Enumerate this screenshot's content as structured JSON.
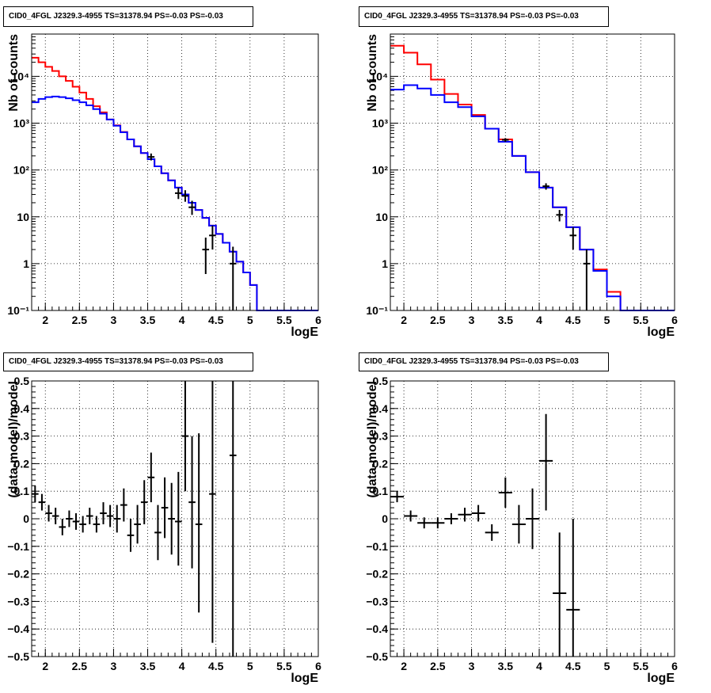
{
  "chart_data": [
    {
      "type": "line",
      "title": "CID0_4FGL J2329.3-4955 TS=31378.94 PS=-0.03 PS=-0.03",
      "xlabel": "logE",
      "ylabel": "Nb of counts",
      "ylog": true,
      "xlim": [
        1.8,
        6
      ],
      "ylim": [
        0.1,
        80000
      ],
      "xticks": [
        2,
        2.5,
        3,
        3.5,
        4,
        4.5,
        5,
        5.5,
        6
      ],
      "xtick_labels": [
        "2",
        "2.5",
        "3",
        "3.5",
        "4",
        "4.5",
        "5",
        "5.5",
        "6"
      ],
      "yticks": [
        0.1,
        1,
        10,
        100,
        1000,
        10000
      ],
      "ytick_labels": [
        "10⁻¹",
        "1",
        "10",
        "10²",
        "10³",
        "10⁴"
      ],
      "grid": true,
      "bin_edges": [
        1.8,
        1.9,
        2.0,
        2.1,
        2.2,
        2.3,
        2.4,
        2.5,
        2.6,
        2.7,
        2.8,
        2.9,
        3.0,
        3.1,
        3.2,
        3.3,
        3.4,
        3.5,
        3.6,
        3.7,
        3.8,
        3.9,
        4.0,
        4.1,
        4.2,
        4.3,
        4.4,
        4.5,
        4.6,
        4.7,
        4.8,
        4.9,
        5.0,
        5.1,
        5.2,
        5.3,
        5.4,
        5.5,
        5.6,
        5.7,
        5.8,
        5.9,
        6.0
      ],
      "series": [
        {
          "color": "#ff0000",
          "step_values": [
            25000,
            20000,
            16000,
            13000,
            10000,
            8000,
            6000,
            4500,
            3300,
            2300,
            1700,
            1200,
            900,
            650,
            450,
            320,
            230,
            170,
            120,
            85,
            60,
            42,
            30,
            20,
            14,
            9.5,
            6.5,
            4.3,
            2.8,
            1.8,
            1.1,
            0.65,
            0.35,
            0.1,
            0.1,
            0.1,
            0.1,
            0.1,
            0.1,
            0.1,
            0.1,
            0.1
          ]
        },
        {
          "color": "#0000ff",
          "step_values": [
            2800,
            3300,
            3600,
            3700,
            3600,
            3400,
            3100,
            2800,
            2400,
            2000,
            1600,
            1200,
            880,
            640,
            450,
            320,
            230,
            170,
            120,
            85,
            60,
            42,
            30,
            20,
            14,
            9.5,
            6.5,
            4.3,
            2.8,
            1.8,
            1.1,
            0.65,
            0.35,
            0.1,
            0.1,
            0.1,
            0.1,
            0.1,
            0.1,
            0.1,
            0.1,
            0.1
          ]
        },
        {
          "color": "#000000",
          "points": [
            {
              "x": 3.55,
              "y": 190,
              "lo": 160,
              "hi": 225
            },
            {
              "x": 3.95,
              "y": 32,
              "lo": 24,
              "hi": 42
            },
            {
              "x": 4.05,
              "y": 28,
              "lo": 21,
              "hi": 37
            },
            {
              "x": 4.15,
              "y": 16,
              "lo": 11,
              "hi": 22
            },
            {
              "x": 4.35,
              "y": 2,
              "lo": 0.6,
              "hi": 3.6
            },
            {
              "x": 4.45,
              "y": 4,
              "lo": 2,
              "hi": 6.5
            },
            {
              "x": 4.75,
              "y": 1,
              "lo": 0.1,
              "hi": 2.3
            }
          ]
        }
      ]
    },
    {
      "type": "line",
      "title": "CID0_4FGL J2329.3-4955 TS=31378.94 PS=-0.03 PS=-0.03",
      "xlabel": "logE",
      "ylabel": "Nb of counts",
      "ylog": true,
      "xlim": [
        1.8,
        6
      ],
      "ylim": [
        0.1,
        80000
      ],
      "xticks": [
        2,
        2.5,
        3,
        3.5,
        4,
        4.5,
        5,
        5.5,
        6
      ],
      "xtick_labels": [
        "2",
        "2.5",
        "3",
        "3.5",
        "4",
        "4.5",
        "5",
        "5.5",
        "6"
      ],
      "yticks": [
        0.1,
        1,
        10,
        100,
        1000,
        10000
      ],
      "ytick_labels": [
        "10⁻¹",
        "1",
        "10",
        "10²",
        "10³",
        "10⁴"
      ],
      "grid": true,
      "bin_edges": [
        1.8,
        2.0,
        2.2,
        2.4,
        2.6,
        2.8,
        3.0,
        3.2,
        3.4,
        3.6,
        3.8,
        4.0,
        4.2,
        4.4,
        4.6,
        4.8,
        5.0,
        5.2,
        5.4,
        5.6,
        5.8,
        6.0
      ],
      "series": [
        {
          "color": "#ff0000",
          "step_values": [
            45000,
            32000,
            18000,
            8500,
            4200,
            2500,
            1500,
            760,
            450,
            200,
            90,
            42,
            16,
            6,
            2,
            0.75,
            0.25,
            0.1,
            0.1,
            0.1,
            0.1
          ]
        },
        {
          "color": "#0000ff",
          "step_values": [
            5200,
            6500,
            5500,
            4000,
            2800,
            2200,
            1400,
            760,
            400,
            200,
            90,
            42,
            16,
            6,
            2,
            0.7,
            0.2,
            0.1,
            0.1,
            0.1,
            0.1
          ]
        },
        {
          "color": "#000000",
          "points": [
            {
              "x": 3.5,
              "y": 440,
              "lo": 400,
              "hi": 480
            },
            {
              "x": 4.1,
              "y": 45,
              "lo": 38,
              "hi": 52
            },
            {
              "x": 4.3,
              "y": 11,
              "lo": 8,
              "hi": 14
            },
            {
              "x": 4.5,
              "y": 4,
              "lo": 2,
              "hi": 6
            },
            {
              "x": 4.7,
              "y": 1,
              "lo": 0.1,
              "hi": 2
            }
          ]
        }
      ]
    },
    {
      "type": "scatter",
      "title": "CID0_4FGL J2329.3-4955 TS=31378.94 PS=-0.03 PS=-0.03",
      "xlabel": "logE",
      "ylabel": "(data-model)/model",
      "ylog": false,
      "xlim": [
        1.8,
        6
      ],
      "ylim": [
        -0.5,
        0.5
      ],
      "xticks": [
        2,
        2.5,
        3,
        3.5,
        4,
        4.5,
        5,
        5.5,
        6
      ],
      "xtick_labels": [
        "2",
        "2.5",
        "3",
        "3.5",
        "4",
        "4.5",
        "5",
        "5.5",
        "6"
      ],
      "yticks": [
        -0.5,
        -0.4,
        -0.3,
        -0.2,
        -0.1,
        0,
        0.1,
        0.2,
        0.3,
        0.4,
        0.5
      ],
      "ytick_labels": [
        "−0.5",
        "−0.4",
        "−0.3",
        "−0.2",
        "−0.1",
        "0",
        "0.1",
        "0.2",
        "0.3",
        "0.4",
        "0.5"
      ],
      "grid": true,
      "xerr": 0.05,
      "points": [
        {
          "x": 1.85,
          "y": 0.09,
          "lo": 0.06,
          "hi": 0.12
        },
        {
          "x": 1.95,
          "y": 0.06,
          "lo": 0.03,
          "hi": 0.09
        },
        {
          "x": 2.05,
          "y": 0.02,
          "lo": -0.01,
          "hi": 0.05
        },
        {
          "x": 2.15,
          "y": 0.01,
          "lo": -0.02,
          "hi": 0.04
        },
        {
          "x": 2.25,
          "y": -0.03,
          "lo": -0.06,
          "hi": 0.0
        },
        {
          "x": 2.35,
          "y": 0.0,
          "lo": -0.03,
          "hi": 0.03
        },
        {
          "x": 2.45,
          "y": -0.01,
          "lo": -0.04,
          "hi": 0.02
        },
        {
          "x": 2.55,
          "y": -0.02,
          "lo": -0.05,
          "hi": 0.01
        },
        {
          "x": 2.65,
          "y": 0.01,
          "lo": -0.02,
          "hi": 0.04
        },
        {
          "x": 2.75,
          "y": -0.02,
          "lo": -0.05,
          "hi": 0.01
        },
        {
          "x": 2.85,
          "y": 0.02,
          "lo": -0.02,
          "hi": 0.06
        },
        {
          "x": 2.95,
          "y": 0.01,
          "lo": -0.03,
          "hi": 0.05
        },
        {
          "x": 3.05,
          "y": 0.0,
          "lo": -0.05,
          "hi": 0.05
        },
        {
          "x": 3.15,
          "y": 0.05,
          "lo": -0.01,
          "hi": 0.11
        },
        {
          "x": 3.25,
          "y": -0.06,
          "lo": -0.12,
          "hi": 0.0
        },
        {
          "x": 3.35,
          "y": -0.02,
          "lo": -0.09,
          "hi": 0.05
        },
        {
          "x": 3.45,
          "y": 0.06,
          "lo": -0.02,
          "hi": 0.14
        },
        {
          "x": 3.55,
          "y": 0.15,
          "lo": 0.06,
          "hi": 0.24
        },
        {
          "x": 3.65,
          "y": -0.05,
          "lo": -0.15,
          "hi": 0.05
        },
        {
          "x": 3.75,
          "y": 0.04,
          "lo": -0.07,
          "hi": 0.15
        },
        {
          "x": 3.85,
          "y": 0.0,
          "lo": -0.13,
          "hi": 0.13
        },
        {
          "x": 3.95,
          "y": -0.01,
          "lo": -0.17,
          "hi": 0.17
        },
        {
          "x": 4.05,
          "y": 0.3,
          "lo": 0.1,
          "hi": 0.5
        },
        {
          "x": 4.15,
          "y": 0.06,
          "lo": -0.18,
          "hi": 0.3
        },
        {
          "x": 4.25,
          "y": -0.02,
          "lo": -0.34,
          "hi": 0.31
        },
        {
          "x": 4.45,
          "y": 0.09,
          "lo": -0.45,
          "hi": 0.5
        },
        {
          "x": 4.75,
          "y": 0.23,
          "lo": -0.5,
          "hi": 0.5
        }
      ]
    },
    {
      "type": "scatter",
      "title": "CID0_4FGL J2329.3-4955 TS=31378.94 PS=-0.03 PS=-0.03",
      "xlabel": "logE",
      "ylabel": "(data-model)/model",
      "ylog": false,
      "xlim": [
        1.8,
        6
      ],
      "ylim": [
        -0.5,
        0.5
      ],
      "xticks": [
        2,
        2.5,
        3,
        3.5,
        4,
        4.5,
        5,
        5.5,
        6
      ],
      "xtick_labels": [
        "2",
        "2.5",
        "3",
        "3.5",
        "4",
        "4.5",
        "5",
        "5.5",
        "6"
      ],
      "yticks": [
        -0.5,
        -0.4,
        -0.3,
        -0.2,
        -0.1,
        0,
        0.1,
        0.2,
        0.3,
        0.4,
        0.5
      ],
      "ytick_labels": [
        "−0.5",
        "−0.4",
        "−0.3",
        "−0.2",
        "−0.1",
        "0",
        "0.1",
        "0.2",
        "0.3",
        "0.4",
        "0.5"
      ],
      "grid": true,
      "xerr": 0.1,
      "points": [
        {
          "x": 1.9,
          "y": 0.08,
          "lo": 0.06,
          "hi": 0.1
        },
        {
          "x": 2.1,
          "y": 0.01,
          "lo": -0.01,
          "hi": 0.03
        },
        {
          "x": 2.3,
          "y": -0.015,
          "lo": -0.035,
          "hi": 0.005
        },
        {
          "x": 2.5,
          "y": -0.015,
          "lo": -0.035,
          "hi": 0.005
        },
        {
          "x": 2.7,
          "y": 0.0,
          "lo": -0.02,
          "hi": 0.02
        },
        {
          "x": 2.9,
          "y": 0.015,
          "lo": -0.01,
          "hi": 0.04
        },
        {
          "x": 3.1,
          "y": 0.02,
          "lo": -0.01,
          "hi": 0.05
        },
        {
          "x": 3.3,
          "y": -0.05,
          "lo": -0.08,
          "hi": -0.02
        },
        {
          "x": 3.5,
          "y": 0.095,
          "lo": 0.04,
          "hi": 0.15
        },
        {
          "x": 3.7,
          "y": -0.02,
          "lo": -0.09,
          "hi": 0.05
        },
        {
          "x": 3.9,
          "y": 0.0,
          "lo": -0.11,
          "hi": 0.11
        },
        {
          "x": 4.1,
          "y": 0.21,
          "lo": 0.03,
          "hi": 0.38
        },
        {
          "x": 4.3,
          "y": -0.27,
          "lo": -0.5,
          "hi": -0.05
        },
        {
          "x": 4.5,
          "y": -0.33,
          "lo": -0.5,
          "hi": 0.0
        }
      ]
    }
  ]
}
